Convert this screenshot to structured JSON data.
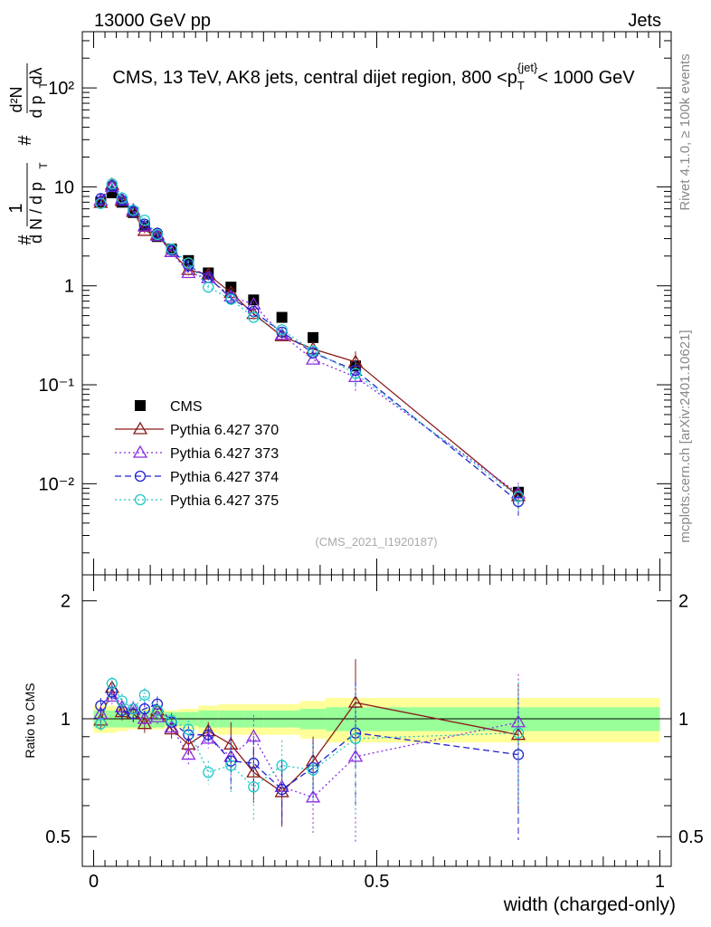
{
  "header": {
    "left": "13000 GeV pp",
    "right": "Jets"
  },
  "side_labels": {
    "rivet": "Rivet 4.1.0, ≥ 100k events",
    "mcplots": "mcplots.cern.ch [arXiv:2401.10621]"
  },
  "chart_data": [
    {
      "type": "scatter",
      "panel": "main",
      "title": "CMS, 13 TeV, AK8 jets, central dijet region, 800 <p_T^{jet}< 1000 GeV",
      "title_parts": {
        "pre": "CMS, 13 TeV, AK8 jets, central dijet region, 800 <p",
        "sub": "T",
        "sup": "{jet}",
        "post": "< 1000 GeV"
      },
      "analysis_tag": "(CMS_2021_I1920187)",
      "ylabel": "1/N dN/dp_T d²N/dp_T dλ",
      "yscale": "log",
      "ylim": [
        0.0012,
        370
      ],
      "xlim": [
        -0.02,
        1.02
      ],
      "y_tick_labels": [
        "10⁻²",
        "10⁻¹",
        "1",
        "10",
        "10²"
      ],
      "x": [
        0.0125,
        0.0325,
        0.05,
        0.07,
        0.09,
        0.1125,
        0.1375,
        0.1675,
        0.2025,
        0.2425,
        0.2825,
        0.3325,
        0.3875,
        0.4625,
        0.75
      ],
      "series": [
        {
          "name": "CMS",
          "style": "marker",
          "color": "#000000",
          "values": [
            7.0,
            8.7,
            7.0,
            5.5,
            4.0,
            3.15,
            2.35,
            1.8,
            1.35,
            0.97,
            0.72,
            0.48,
            0.3,
            0.155,
            0.0082
          ]
        },
        {
          "name": "Pythia 6.427 370",
          "style": "solid",
          "color": "#8b1a1a",
          "marker": "triangle",
          "values": [
            6.9,
            10.5,
            7.2,
            5.6,
            3.6,
            3.3,
            2.2,
            1.45,
            1.3,
            0.85,
            0.52,
            0.31,
            0.23,
            0.17,
            0.0075
          ]
        },
        {
          "name": "Pythia 6.427 373",
          "style": "dotted",
          "color": "#8a2be2",
          "marker": "triangle",
          "values": [
            7.3,
            10.0,
            7.5,
            5.8,
            4.0,
            3.2,
            2.2,
            1.35,
            1.2,
            0.78,
            0.65,
            0.32,
            0.18,
            0.12,
            0.008
          ]
        },
        {
          "name": "Pythia 6.427 374",
          "style": "dashed",
          "color": "#2222cc",
          "marker": "circle",
          "values": [
            7.6,
            10.2,
            7.3,
            5.6,
            4.2,
            3.4,
            2.3,
            1.6,
            1.22,
            0.75,
            0.55,
            0.34,
            0.21,
            0.14,
            0.0066
          ]
        },
        {
          "name": "Pythia 6.427 375",
          "style": "dotted",
          "color": "#20c8c8",
          "marker": "circle",
          "values": [
            6.8,
            10.7,
            7.7,
            5.8,
            4.6,
            3.3,
            2.35,
            1.7,
            0.97,
            0.73,
            0.48,
            0.36,
            0.22,
            0.13,
            0.0074
          ]
        }
      ]
    },
    {
      "type": "scatter",
      "panel": "ratio",
      "xlabel": "width (charged-only)",
      "ylabel": "Ratio to CMS",
      "ylim": [
        0.42,
        2.33
      ],
      "xlim": [
        -0.02,
        1.02
      ],
      "y_tick_labels": [
        "0.5",
        "1",
        "2"
      ],
      "x_tick_labels": [
        "0",
        "0.5",
        "1"
      ],
      "reference": 1.0,
      "band_edges": [
        0,
        0.025,
        0.04,
        0.06,
        0.08,
        0.1,
        0.125,
        0.15,
        0.185,
        0.22,
        0.265,
        0.3,
        0.365,
        0.41,
        0.5,
        1.0
      ],
      "band_inner": [
        0.05,
        0.05,
        0.05,
        0.05,
        0.05,
        0.05,
        0.04,
        0.04,
        0.05,
        0.05,
        0.05,
        0.05,
        0.06,
        0.07,
        0.07
      ],
      "band_outer": [
        0.08,
        0.08,
        0.07,
        0.06,
        0.06,
        0.06,
        0.05,
        0.06,
        0.08,
        0.09,
        0.09,
        0.09,
        0.11,
        0.13,
        0.13
      ],
      "x": [
        0.0125,
        0.0325,
        0.05,
        0.07,
        0.09,
        0.1125,
        0.1375,
        0.1675,
        0.2025,
        0.2425,
        0.2825,
        0.3325,
        0.3875,
        0.4625,
        0.75
      ],
      "series": [
        {
          "name": "Pythia 6.427 370",
          "style": "solid",
          "color": "#8b1a1a",
          "marker": "triangle",
          "values": [
            0.99,
            1.2,
            1.04,
            1.03,
            0.97,
            1.05,
            0.94,
            0.86,
            0.93,
            0.86,
            0.73,
            0.65,
            0.78,
            1.1,
            0.91
          ]
        },
        {
          "name": "Pythia 6.427 373",
          "style": "dotted",
          "color": "#8a2be2",
          "marker": "triangle",
          "values": [
            1.03,
            1.14,
            1.07,
            1.06,
            1.0,
            1.01,
            0.95,
            0.81,
            0.89,
            0.8,
            0.9,
            0.67,
            0.63,
            0.8,
            0.98
          ]
        },
        {
          "name": "Pythia 6.427 374",
          "style": "dashed",
          "color": "#2222cc",
          "marker": "circle",
          "values": [
            1.08,
            1.17,
            1.05,
            1.03,
            1.06,
            1.09,
            0.98,
            0.91,
            0.91,
            0.78,
            0.77,
            0.66,
            0.75,
            0.92,
            0.81
          ]
        },
        {
          "name": "Pythia 6.427 375",
          "style": "dotted",
          "color": "#20c8c8",
          "marker": "circle",
          "values": [
            0.97,
            1.23,
            1.11,
            1.06,
            1.15,
            1.05,
            0.99,
            0.94,
            0.73,
            0.76,
            0.67,
            0.76,
            0.74,
            0.89,
            0.92
          ]
        }
      ]
    }
  ]
}
